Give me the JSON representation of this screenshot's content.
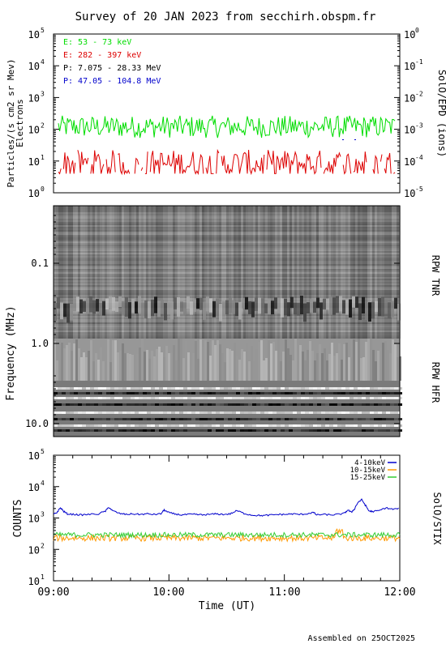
{
  "title": "Survey of 20 JAN 2023 from secchirh.obspm.fr",
  "footer": "Assembled on 25OCT2025",
  "colors": {
    "green": "#00dd00",
    "red": "#dd0000",
    "black": "#000000",
    "blue": "#0000cc",
    "orange": "#ff9900",
    "stix_blue": "#0000cc",
    "stix_green": "#33cc33"
  },
  "chart_data": [
    {
      "type": "line",
      "panel": "particles",
      "ylabel": "Particles/(s cm2 sr Mev)",
      "ylabel2": "Electrons",
      "right_label": "SolO/EPD (ions)",
      "yscale": "log",
      "ylim": [
        1,
        100000
      ],
      "y2lim": [
        1e-05,
        1
      ],
      "left_ticks": [
        {
          "base": "10",
          "exp": "0"
        },
        {
          "base": "10",
          "exp": "1"
        },
        {
          "base": "10",
          "exp": "2"
        },
        {
          "base": "10",
          "exp": "3"
        },
        {
          "base": "10",
          "exp": "4"
        },
        {
          "base": "10",
          "exp": "5"
        }
      ],
      "right_ticks": [
        {
          "base": "10",
          "exp": "-5"
        },
        {
          "base": "10",
          "exp": "-4"
        },
        {
          "base": "10",
          "exp": "-3"
        },
        {
          "base": "10",
          "exp": "-2"
        },
        {
          "base": "10",
          "exp": "-1"
        },
        {
          "base": "10",
          "exp": "0"
        }
      ],
      "legend_placement": "top-left",
      "series": [
        {
          "name": "E: 53 - 73 keV",
          "color": "#00dd00",
          "level": 120,
          "spread": 0.35,
          "gaps": false
        },
        {
          "name": "E: 282 - 397 keV",
          "color": "#dd0000",
          "level": 8,
          "spread": 0.45,
          "gaps": true
        },
        {
          "name": "P: 7.075 - 28.33 MeV",
          "color": "#000000",
          "level": null
        },
        {
          "name": "P: 47.05 - 104.8 MeV",
          "color": "#0000cc",
          "level": null
        }
      ]
    },
    {
      "type": "heatmap",
      "panel": "radio",
      "ylabel": "Frequency (MHz)",
      "yscale": "log",
      "ylim": [
        0.02,
        16
      ],
      "y_ticks": [
        "0.1",
        "1.0",
        "10.0"
      ],
      "right_labels": [
        "RPW TNR",
        "RPW HFR"
      ]
    },
    {
      "type": "line",
      "panel": "xray",
      "ylabel": "COUNTS",
      "right_label": "SolO/STIX",
      "yscale": "log",
      "ylim": [
        10,
        100000
      ],
      "y_ticks": [
        {
          "base": "10",
          "exp": "1"
        },
        {
          "base": "10",
          "exp": "2"
        },
        {
          "base": "10",
          "exp": "3"
        },
        {
          "base": "10",
          "exp": "4"
        },
        {
          "base": "10",
          "exp": "5"
        }
      ],
      "xlabel": "Time (UT)",
      "x_ticks": [
        "09:00",
        "10:00",
        "11:00",
        "12:00"
      ],
      "xlim": [
        "09:00",
        "12:00"
      ],
      "legend_placement": "top-right",
      "series": [
        {
          "name": "4-10keV",
          "color": "#0000cc",
          "points": [
            [
              0,
              1300
            ],
            [
              0.1,
              1500
            ],
            [
              0.2,
              2100
            ],
            [
              0.3,
              1600
            ],
            [
              0.4,
              1350
            ],
            [
              0.6,
              1300
            ],
            [
              0.8,
              1250
            ],
            [
              1.0,
              1300
            ],
            [
              1.3,
              1350
            ],
            [
              1.5,
              1650
            ],
            [
              1.6,
              2200
            ],
            [
              1.7,
              1700
            ],
            [
              1.9,
              1400
            ],
            [
              2.1,
              1300
            ],
            [
              2.3,
              1350
            ],
            [
              2.5,
              1300
            ],
            [
              2.7,
              1350
            ],
            [
              2.9,
              1300
            ],
            [
              3.1,
              1350
            ],
            [
              3.2,
              1800
            ],
            [
              3.3,
              1500
            ],
            [
              3.5,
              1350
            ],
            [
              3.7,
              1250
            ],
            [
              3.9,
              1300
            ],
            [
              4.1,
              1300
            ],
            [
              4.3,
              1250
            ],
            [
              4.5,
              1300
            ],
            [
              4.7,
              1350
            ],
            [
              4.9,
              1300
            ],
            [
              5.1,
              1350
            ],
            [
              5.3,
              1700
            ],
            [
              5.5,
              1400
            ],
            [
              5.7,
              1250
            ],
            [
              5.9,
              1200
            ],
            [
              6.1,
              1200
            ],
            [
              6.3,
              1250
            ],
            [
              6.5,
              1300
            ],
            [
              6.7,
              1300
            ],
            [
              6.9,
              1350
            ],
            [
              7.1,
              1300
            ],
            [
              7.3,
              1350
            ],
            [
              7.5,
              1500
            ],
            [
              7.6,
              1250
            ],
            [
              7.8,
              1300
            ],
            [
              8.0,
              1250
            ],
            [
              8.2,
              1300
            ],
            [
              8.4,
              1400
            ],
            [
              8.5,
              1800
            ],
            [
              8.6,
              1500
            ],
            [
              8.7,
              2000
            ],
            [
              8.8,
              3200
            ],
            [
              8.9,
              3800
            ],
            [
              9.0,
              2600
            ],
            [
              9.1,
              1700
            ],
            [
              9.2,
              1600
            ],
            [
              9.4,
              1700
            ],
            [
              9.6,
              2100
            ],
            [
              9.8,
              1900
            ],
            [
              10,
              2000
            ]
          ]
        },
        {
          "name": "10-15keV",
          "color": "#ff9900",
          "level": 230,
          "spread": 0.1
        },
        {
          "name": "15-25keV",
          "color": "#33cc33",
          "level": 290,
          "spread": 0.08
        }
      ]
    }
  ]
}
